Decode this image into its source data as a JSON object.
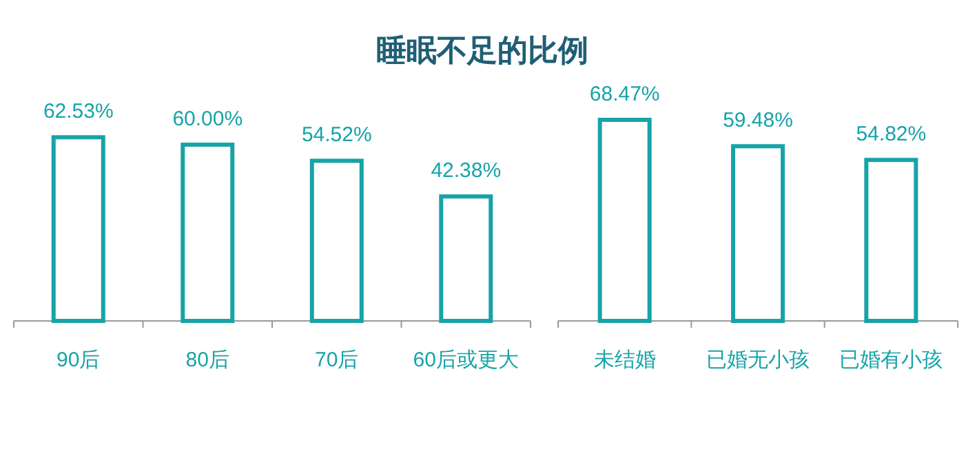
{
  "chart_data": [
    {
      "type": "bar",
      "title": "睡眠不足的比例",
      "categories": [
        "90后",
        "80后",
        "70后",
        "60后或更大"
      ],
      "values": [
        62.53,
        60.0,
        54.52,
        42.38
      ],
      "value_labels": [
        "62.53%",
        "60.00%",
        "54.52%",
        "42.38%"
      ],
      "color": "#17a3a8"
    },
    {
      "type": "bar",
      "categories": [
        "未结婚",
        "已婚无小孩",
        "已婚有小孩"
      ],
      "values": [
        68.47,
        59.48,
        54.82
      ],
      "value_labels": [
        "68.47%",
        "59.48%",
        "54.82%"
      ],
      "color": "#17a3a8"
    }
  ]
}
